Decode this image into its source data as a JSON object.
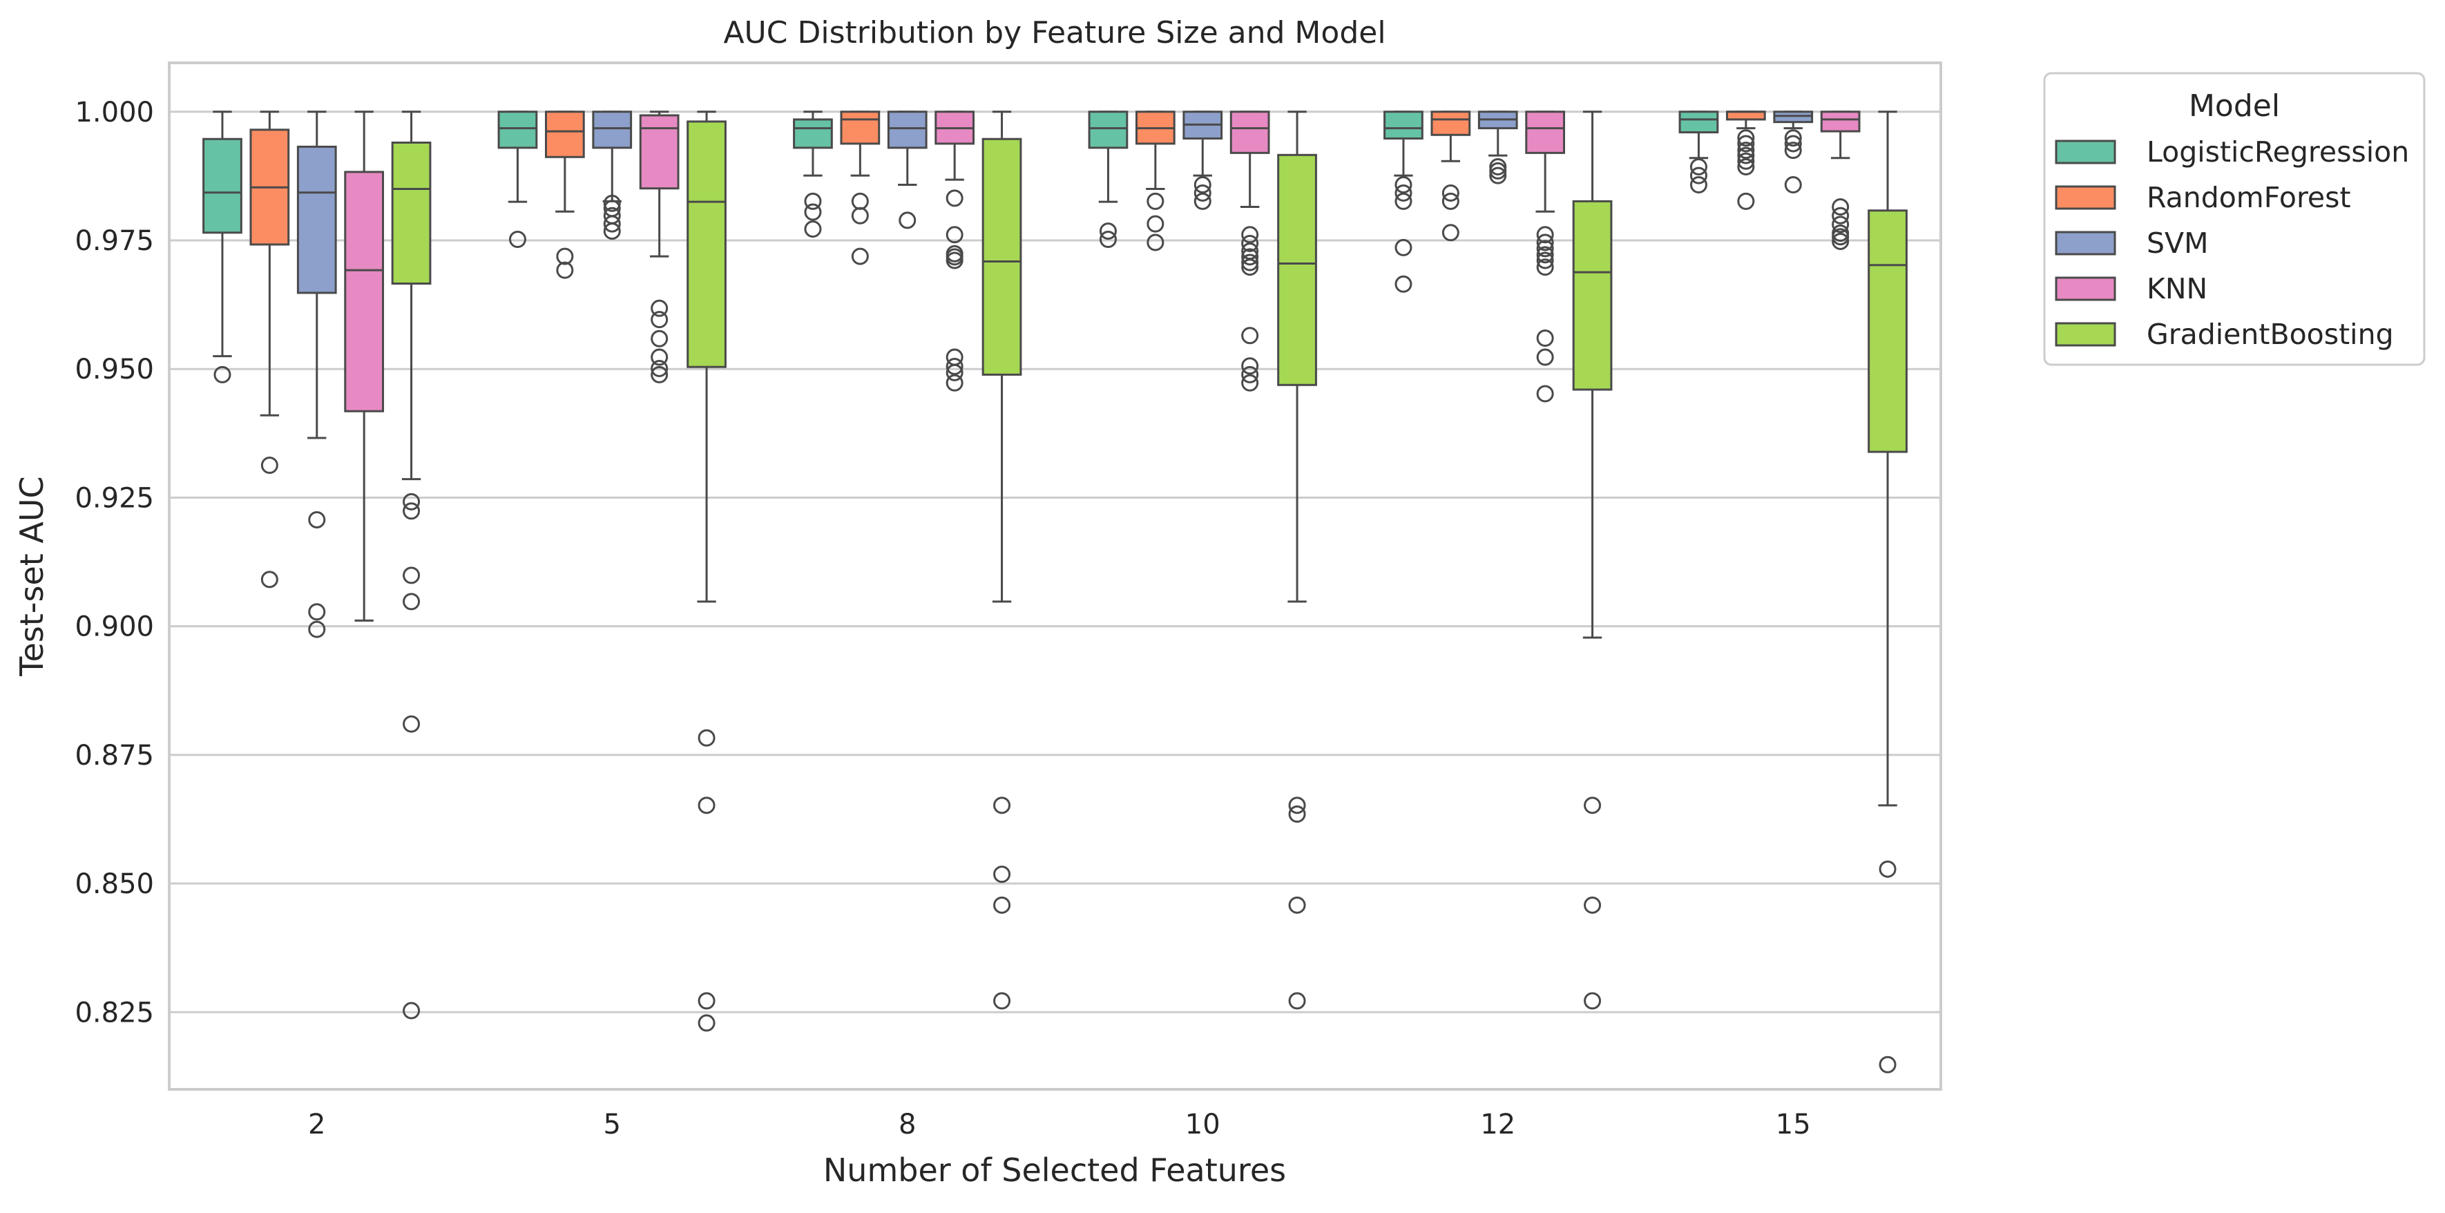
{
  "chart_data": {
    "type": "box",
    "title": "AUC Distribution by Feature Size and Model",
    "xlabel": "Number of Selected Features",
    "ylabel": "Test-set AUC",
    "categories": [
      "2",
      "5",
      "8",
      "10",
      "12",
      "15"
    ],
    "ylim": [
      0.81,
      1.0095
    ],
    "yticks": [
      "0.825",
      "0.850",
      "0.875",
      "0.900",
      "0.925",
      "0.950",
      "0.975",
      "1.000"
    ],
    "grid": "horizontal",
    "legend": {
      "title": "Model",
      "placement": "outside upper right"
    },
    "colors": {
      "LogisticRegression": "#66c2a5",
      "RandomForest": "#fc8d62",
      "SVM": "#8da0cb",
      "KNN": "#e78ac3",
      "GradientBoosting": "#a6d854",
      "line": "#4a4a4a",
      "grid": "#cccccc",
      "frame": "#cccccc"
    },
    "series": [
      {
        "name": "LogisticRegression",
        "boxes": [
          {
            "q1": 0.9765,
            "median": 0.9843,
            "q3": 0.9947,
            "whislo": 0.9525,
            "whishi": 1.0,
            "fliers": [
              0.9489
            ]
          },
          {
            "q1": 0.993,
            "median": 0.9968,
            "q3": 1.0,
            "whislo": 0.9825,
            "whishi": 1.0,
            "fliers": [
              0.9752
            ]
          },
          {
            "q1": 0.993,
            "median": 0.9968,
            "q3": 0.9985,
            "whislo": 0.9876,
            "whishi": 1.0,
            "fliers": [
              0.9826,
              0.9805,
              0.9772
            ]
          },
          {
            "q1": 0.993,
            "median": 0.9968,
            "q3": 1.0,
            "whislo": 0.9825,
            "whishi": 1.0,
            "fliers": [
              0.9768,
              0.9752
            ]
          },
          {
            "q1": 0.9948,
            "median": 0.9968,
            "q3": 1.0,
            "whislo": 0.9876,
            "whishi": 1.0,
            "fliers": [
              0.9858,
              0.9842,
              0.9826,
              0.9736,
              0.9665
            ]
          },
          {
            "q1": 0.996,
            "median": 0.9985,
            "q3": 1.0,
            "whislo": 0.991,
            "whishi": 1.0,
            "fliers": [
              0.9893,
              0.9876,
              0.9858
            ]
          }
        ]
      },
      {
        "name": "RandomForest",
        "boxes": [
          {
            "q1": 0.9742,
            "median": 0.9853,
            "q3": 0.9965,
            "whislo": 0.941,
            "whishi": 1.0,
            "fliers": [
              0.9313,
              0.9091
            ]
          },
          {
            "q1": 0.9912,
            "median": 0.9962,
            "q3": 1.0,
            "whislo": 0.9806,
            "whishi": 1.0,
            "fliers": [
              0.9719,
              0.9692
            ]
          },
          {
            "q1": 0.9938,
            "median": 0.9985,
            "q3": 1.0,
            "whislo": 0.9876,
            "whishi": 1.0,
            "fliers": [
              0.9826,
              0.9798,
              0.9719
            ]
          },
          {
            "q1": 0.9938,
            "median": 0.9968,
            "q3": 1.0,
            "whislo": 0.985,
            "whishi": 1.0,
            "fliers": [
              0.9826,
              0.9782,
              0.9746
            ]
          },
          {
            "q1": 0.9955,
            "median": 0.9985,
            "q3": 1.0,
            "whislo": 0.9904,
            "whishi": 1.0,
            "fliers": [
              0.9842,
              0.9826,
              0.9765
            ]
          },
          {
            "q1": 0.9985,
            "median": 1.0,
            "q3": 1.0,
            "whislo": 0.9968,
            "whishi": 1.0,
            "fliers": [
              0.9949,
              0.9938,
              0.9925,
              0.9915,
              0.9904,
              0.9893,
              0.9826
            ]
          }
        ]
      },
      {
        "name": "SVM",
        "boxes": [
          {
            "q1": 0.9648,
            "median": 0.9843,
            "q3": 0.9932,
            "whislo": 0.9366,
            "whishi": 1.0,
            "fliers": [
              0.9207,
              0.9028,
              0.8994
            ]
          },
          {
            "q1": 0.993,
            "median": 0.9968,
            "q3": 1.0,
            "whislo": 0.9826,
            "whishi": 1.0,
            "fliers": [
              0.9822,
              0.9812,
              0.9798,
              0.9782,
              0.9768
            ]
          },
          {
            "q1": 0.993,
            "median": 0.9968,
            "q3": 1.0,
            "whislo": 0.9858,
            "whishi": 1.0,
            "fliers": [
              0.9789
            ]
          },
          {
            "q1": 0.9948,
            "median": 0.9975,
            "q3": 1.0,
            "whislo": 0.9876,
            "whishi": 1.0,
            "fliers": [
              0.9858,
              0.9842,
              0.9826
            ]
          },
          {
            "q1": 0.9968,
            "median": 0.9985,
            "q3": 1.0,
            "whislo": 0.9915,
            "whishi": 1.0,
            "fliers": [
              0.9893,
              0.9885,
              0.9876
            ]
          },
          {
            "q1": 0.998,
            "median": 0.9992,
            "q3": 1.0,
            "whislo": 0.9968,
            "whishi": 1.0,
            "fliers": [
              0.9949,
              0.9938,
              0.9925,
              0.9858
            ]
          }
        ]
      },
      {
        "name": "KNN",
        "boxes": [
          {
            "q1": 0.9418,
            "median": 0.9692,
            "q3": 0.9883,
            "whislo": 0.9011,
            "whishi": 1.0,
            "fliers": []
          },
          {
            "q1": 0.9851,
            "median": 0.9968,
            "q3": 0.9993,
            "whislo": 0.9719,
            "whishi": 1.0,
            "fliers": [
              0.9618,
              0.9596,
              0.9559,
              0.9523,
              0.9501,
              0.9489
            ]
          },
          {
            "q1": 0.9938,
            "median": 0.9968,
            "q3": 1.0,
            "whislo": 0.9868,
            "whishi": 1.0,
            "fliers": [
              0.9832,
              0.9761,
              0.9724,
              0.9718,
              0.9711,
              0.9523,
              0.9505,
              0.9493,
              0.9473
            ]
          },
          {
            "q1": 0.992,
            "median": 0.9968,
            "q3": 1.0,
            "whislo": 0.9815,
            "whishi": 1.0,
            "fliers": [
              0.9761,
              0.9744,
              0.9729,
              0.9718,
              0.9707,
              0.9698,
              0.9565,
              0.9506,
              0.9489,
              0.9473
            ]
          },
          {
            "q1": 0.992,
            "median": 0.9968,
            "q3": 1.0,
            "whislo": 0.9806,
            "whishi": 1.0,
            "fliers": [
              0.9761,
              0.9746,
              0.9734,
              0.9722,
              0.9711,
              0.9698,
              0.956,
              0.9523,
              0.9452
            ]
          },
          {
            "q1": 0.9962,
            "median": 0.9985,
            "q3": 1.0,
            "whislo": 0.991,
            "whishi": 1.0,
            "fliers": [
              0.9815,
              0.9798,
              0.9781,
              0.9764,
              0.9757,
              0.9748
            ]
          }
        ]
      },
      {
        "name": "GradientBoosting",
        "boxes": [
          {
            "q1": 0.9666,
            "median": 0.985,
            "q3": 0.994,
            "whislo": 0.9286,
            "whishi": 1.0,
            "fliers": [
              0.9242,
              0.9224,
              0.9099,
              0.9048,
              0.881,
              0.8253
            ]
          },
          {
            "q1": 0.9504,
            "median": 0.9825,
            "q3": 0.9981,
            "whislo": 0.9048,
            "whishi": 1.0,
            "fliers": [
              0.8783,
              0.8652,
              0.8272,
              0.8229
            ]
          },
          {
            "q1": 0.9489,
            "median": 0.9709,
            "q3": 0.9947,
            "whislo": 0.9048,
            "whishi": 1.0,
            "fliers": [
              0.8652,
              0.8518,
              0.8458,
              0.8272
            ]
          },
          {
            "q1": 0.9469,
            "median": 0.9705,
            "q3": 0.9916,
            "whislo": 0.9048,
            "whishi": 1.0,
            "fliers": [
              0.8652,
              0.8635,
              0.8458,
              0.8272
            ]
          },
          {
            "q1": 0.946,
            "median": 0.9688,
            "q3": 0.9826,
            "whislo": 0.8978,
            "whishi": 1.0,
            "fliers": [
              0.8652,
              0.8458,
              0.8272
            ]
          },
          {
            "q1": 0.9339,
            "median": 0.9702,
            "q3": 0.9808,
            "whislo": 0.8652,
            "whishi": 1.0,
            "fliers": [
              0.8528,
              0.8148
            ]
          }
        ]
      }
    ]
  }
}
